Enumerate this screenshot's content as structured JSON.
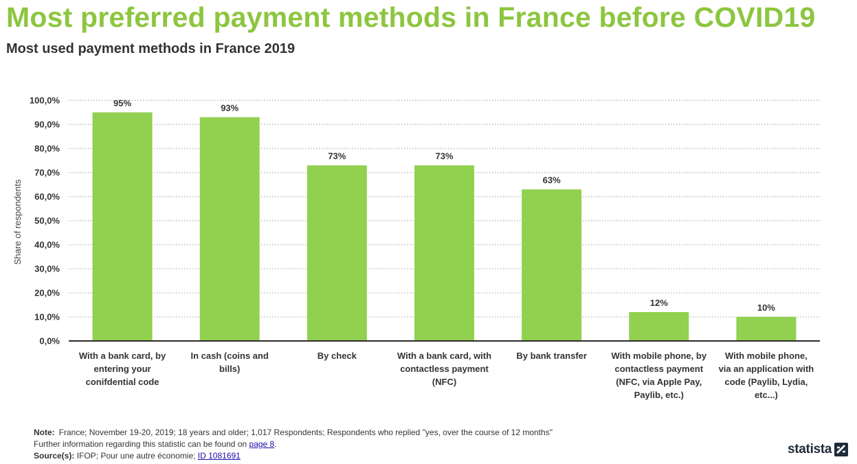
{
  "header": {
    "title": "Most preferred payment methods in France before COVID19",
    "subtitle": "Most used payment methods in France 2019"
  },
  "chart_data": {
    "type": "bar",
    "ylabel": "Share of respondents",
    "xlabel": "",
    "ylim": [
      0,
      100
    ],
    "yticks": [
      0,
      10,
      20,
      30,
      40,
      50,
      60,
      70,
      80,
      90,
      100
    ],
    "ytick_labels": [
      "0,0%",
      "10,0%",
      "20,0%",
      "30,0%",
      "40,0%",
      "50,0%",
      "60,0%",
      "70,0%",
      "80,0%",
      "90,0%",
      "100,0%"
    ],
    "grid": true,
    "categories": [
      [
        "With a bank card, by",
        "entering your",
        "conifdential code"
      ],
      [
        "In cash (coins and",
        "bills)"
      ],
      [
        "By check"
      ],
      [
        "With a bank card, with",
        "contactless payment",
        "(NFC)"
      ],
      [
        "By bank transfer"
      ],
      [
        "With mobile phone, by",
        "contactless payment",
        "(NFC, via Apple Pay,",
        "Paylib, etc.)"
      ],
      [
        "With mobile phone,",
        "via an application with",
        "code (Paylib, Lydia,",
        "etc...)"
      ]
    ],
    "values": [
      95,
      93,
      73,
      73,
      63,
      12,
      10
    ],
    "value_labels": [
      "95%",
      "93%",
      "73%",
      "73%",
      "63%",
      "12%",
      "10%"
    ],
    "bar_color": "#92d050"
  },
  "footer": {
    "note_label": "Note:",
    "note_text": "France; November 19-20, 2019; 18 years and older; 1,017 Respondents; Respondents who replied \"yes, over the course of 12 months\"",
    "further_text": "Further information regarding this statistic can be found on",
    "further_link": "page 8",
    "further_end": ".",
    "source_label": "Source(s):",
    "source_text": "IFOP; Pour une autre économie;",
    "source_link": "ID 1081691"
  },
  "branding": {
    "logo_text": "statista",
    "logo_icon": "statista-logo-icon"
  }
}
